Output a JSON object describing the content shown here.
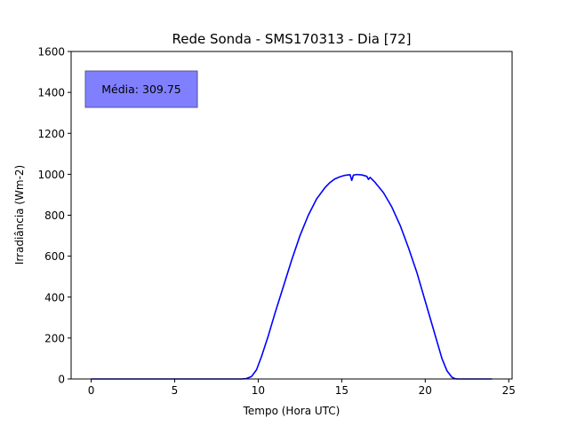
{
  "chart_data": {
    "type": "line",
    "title": "Rede Sonda - SMS170313 - Dia [72]",
    "xlabel": "Tempo (Hora UTC)",
    "ylabel": "Irradiância (Wm-2)",
    "xlim": [
      -1.2,
      25.2
    ],
    "ylim": [
      0,
      1600
    ],
    "xticks": [
      0,
      5,
      10,
      15,
      20,
      25
    ],
    "yticks": [
      0,
      200,
      400,
      600,
      800,
      1000,
      1200,
      1400,
      1600
    ],
    "annotation": "Média: 309.75",
    "series": [
      {
        "color": "#0000ff",
        "x": [
          0,
          3,
          6,
          9,
          9.3,
          9.6,
          9.9,
          10.2,
          10.6,
          11,
          11.5,
          12,
          12.5,
          13,
          13.5,
          14,
          14.3,
          14.6,
          14.9,
          15.2,
          15.5,
          15.6,
          15.7,
          15.9,
          16.2,
          16.5,
          16.6,
          16.7,
          17,
          17.5,
          18,
          18.5,
          19,
          19.5,
          20,
          20.5,
          21,
          21.3,
          21.6,
          21.8,
          22,
          23,
          24
        ],
        "y": [
          0,
          0,
          0,
          0,
          2,
          12,
          45,
          110,
          210,
          320,
          450,
          580,
          700,
          800,
          880,
          935,
          960,
          978,
          988,
          995,
          998,
          970,
          996,
          999,
          997,
          990,
          975,
          985,
          960,
          910,
          840,
          750,
          640,
          520,
          380,
          240,
          100,
          40,
          8,
          1,
          0,
          0,
          0
        ]
      }
    ]
  }
}
